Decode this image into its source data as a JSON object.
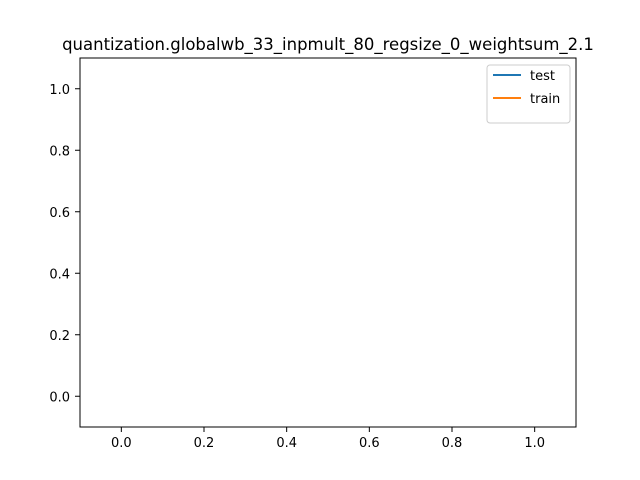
{
  "chart_data": {
    "type": "line",
    "title": "quantization.globalwb_33_inpmult_80_regsize_0_weightsum_2.1",
    "xlabel": "",
    "ylabel": "",
    "xlim": [
      -0.1,
      1.1
    ],
    "ylim": [
      -0.1,
      1.1
    ],
    "xticks": [
      0.0,
      0.2,
      0.4,
      0.6,
      0.8,
      1.0
    ],
    "xtick_labels": [
      "0.0",
      "0.2",
      "0.4",
      "0.6",
      "0.8",
      "1.0"
    ],
    "yticks": [
      0.0,
      0.2,
      0.4,
      0.6,
      0.8,
      1.0
    ],
    "ytick_labels": [
      "0.0",
      "0.2",
      "0.4",
      "0.6",
      "0.8",
      "1.0"
    ],
    "grid": false,
    "legend_position": "top-right",
    "series": [
      {
        "name": "test",
        "color": "#1f77b4",
        "x": [],
        "y": []
      },
      {
        "name": "train",
        "color": "#ff7f0e",
        "x": [],
        "y": []
      }
    ]
  }
}
